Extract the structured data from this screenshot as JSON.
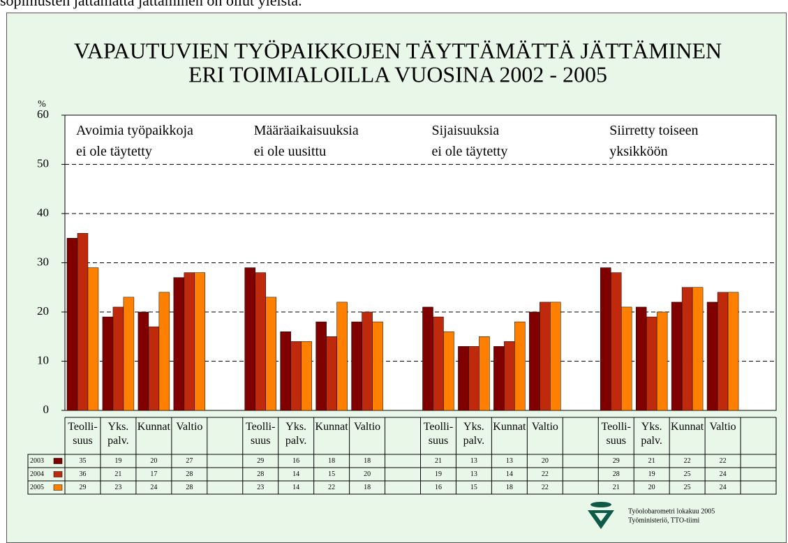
{
  "top_text": "sopimusten jättämättä jättäminen on ollut yleistä.",
  "chart_data": {
    "type": "bar",
    "title": [
      "VAPAUTUVIEN TYÖPAIKKOJEN TÄYTTÄMÄTTÄ JÄTTÄMINEN",
      "ERI TOIMIALOILLA VUOSINA 2002 - 2005"
    ],
    "y_label": "%",
    "annotations": [
      "Avoimia työpaikkoja\nei ole täytetty",
      "Määräaikaisuuksia\nei ole uusittu",
      "Sijaisuuksia\nei ole täytetty",
      "Siirretty toiseen\nyksikköön"
    ],
    "categories": [
      "Teolli-\nsuus",
      "Yks.\npalv.",
      "Kunnat",
      "Valtio",
      null,
      "Teolli-\nsuus",
      "Yks.\npalv.",
      "Kunnat",
      "Valtio",
      null,
      "Teolli-\nsuus",
      "Yks.\npalv.",
      "Kunnat",
      "Valtio",
      null,
      "Teolli-\nsuus",
      "Yks.\npalv.",
      "Kunnat",
      "Valtio",
      null
    ],
    "series": [
      {
        "name": "2003",
        "color": "#800000",
        "values": [
          35,
          19,
          20,
          27,
          null,
          29,
          16,
          18,
          18,
          null,
          21,
          13,
          13,
          20,
          null,
          29,
          21,
          22,
          22,
          null
        ]
      },
      {
        "name": "2004",
        "color": "#c02a0c",
        "values": [
          36,
          21,
          17,
          28,
          null,
          28,
          14,
          15,
          20,
          null,
          19,
          13,
          14,
          22,
          null,
          28,
          19,
          25,
          24,
          null
        ]
      },
      {
        "name": "2005",
        "color": "#ff8000",
        "values": [
          29,
          23,
          24,
          28,
          null,
          23,
          14,
          22,
          18,
          null,
          16,
          15,
          18,
          22,
          null,
          21,
          20,
          25,
          24,
          null
        ]
      }
    ],
    "ylim": [
      0,
      60
    ],
    "yticks": [
      0,
      10,
      20,
      30,
      40,
      50,
      60
    ],
    "grid": true,
    "source": [
      "Työolobarometri lokakuu 2005",
      "Työministeriö, TTO-tiimi"
    ]
  }
}
